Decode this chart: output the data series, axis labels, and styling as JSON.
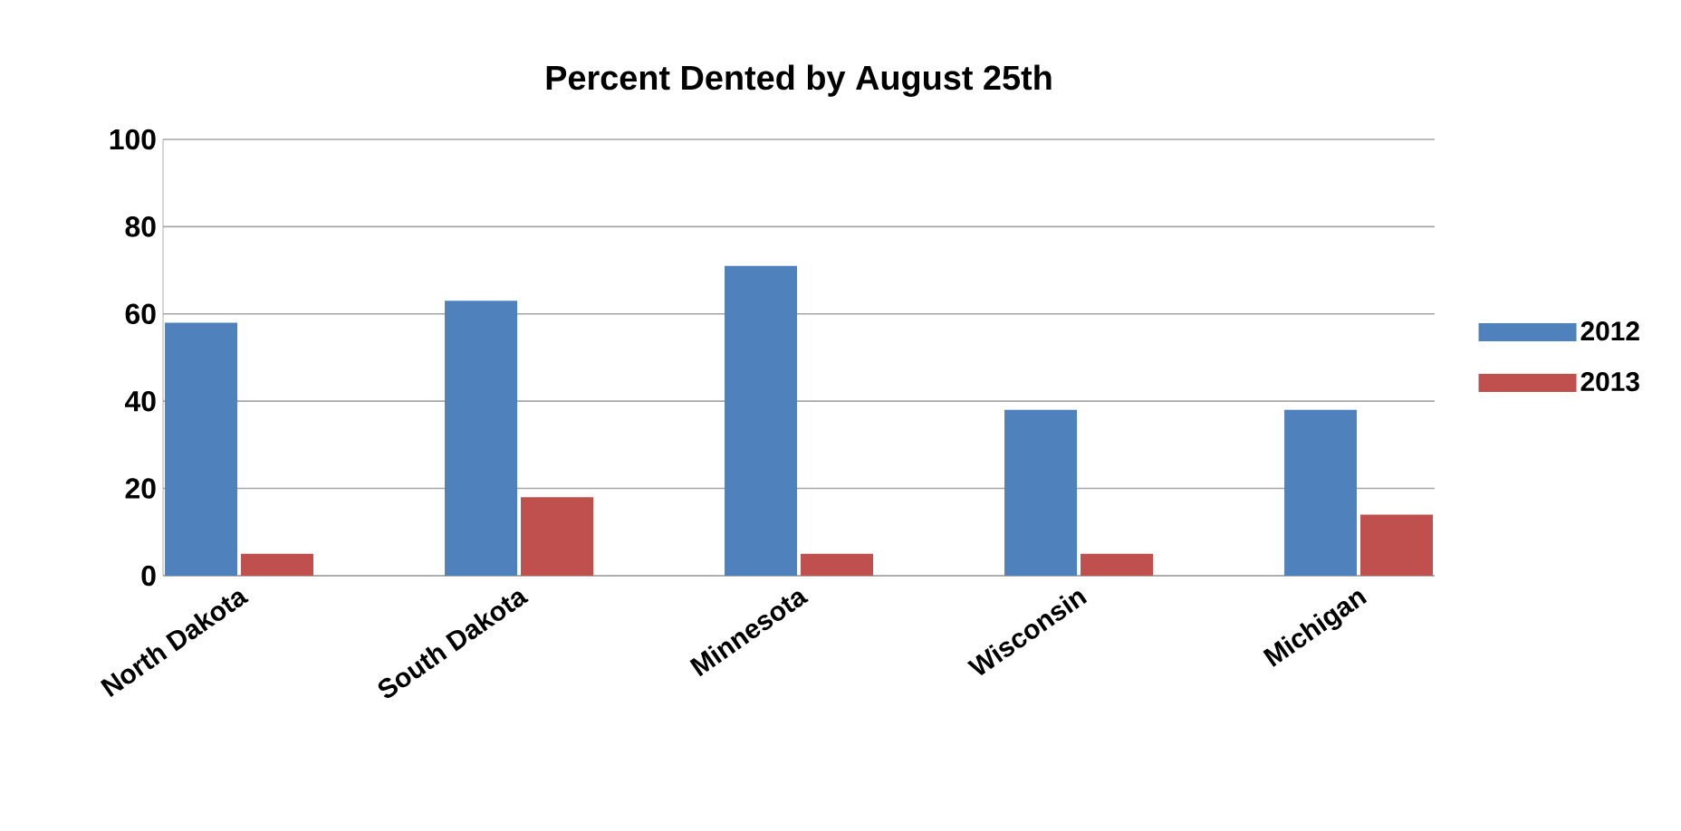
{
  "chart_data": {
    "type": "bar",
    "title": "Percent Dented by August 25th",
    "categories": [
      "North Dakota",
      "South Dakota",
      "Minnesota",
      "Wisconsin",
      "Michigan"
    ],
    "series": [
      {
        "name": "2012",
        "color": "#4f81bd",
        "values": [
          58,
          63,
          71,
          38,
          38
        ]
      },
      {
        "name": "2013",
        "color": "#c0504d",
        "values": [
          5,
          18,
          5,
          5,
          14
        ]
      }
    ],
    "ylim": [
      0,
      100
    ],
    "yticks": [
      0,
      20,
      40,
      60,
      80,
      100
    ],
    "grid": "y",
    "legend": "right"
  }
}
